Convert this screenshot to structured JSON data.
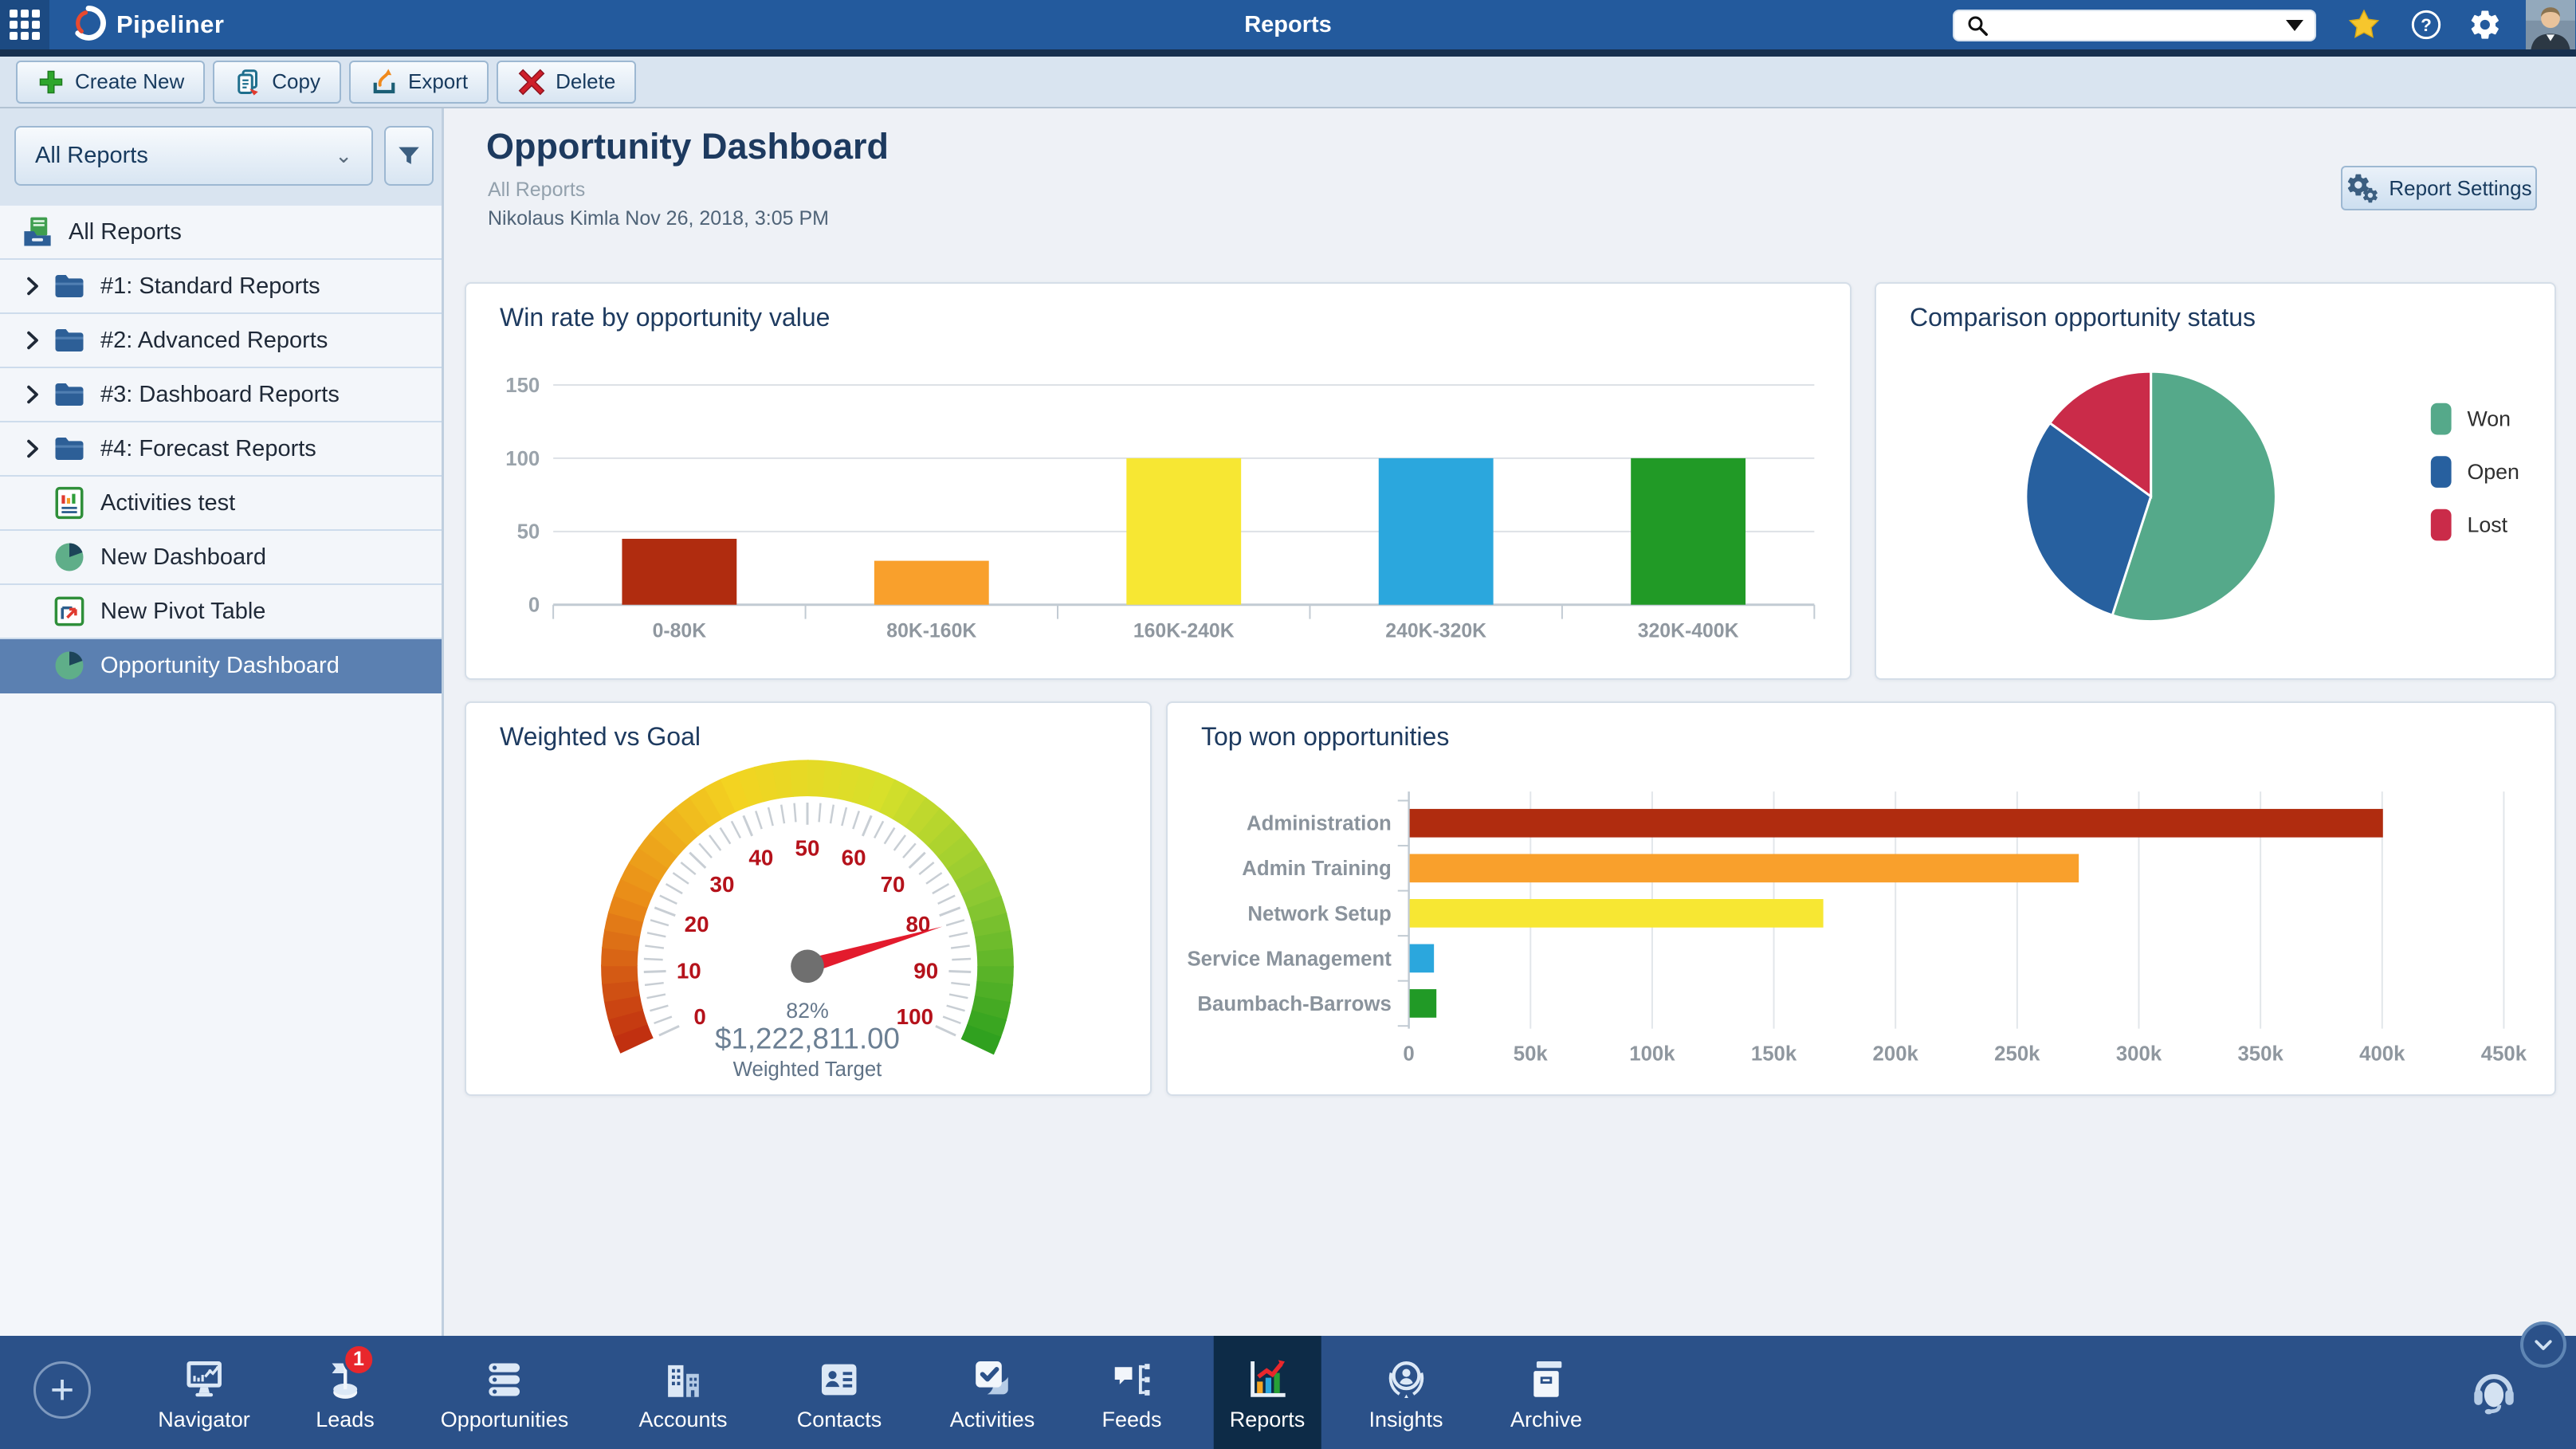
{
  "topbar": {
    "app_name": "Pipeliner",
    "page_title": "Reports",
    "search_placeholder": ""
  },
  "toolbar": {
    "buttons": [
      {
        "name": "create-new-button",
        "icon": "plus-icon",
        "label": "Create New"
      },
      {
        "name": "copy-button",
        "icon": "copy-icon",
        "label": "Copy"
      },
      {
        "name": "export-button",
        "icon": "export-icon",
        "label": "Export"
      },
      {
        "name": "delete-button",
        "icon": "delete-icon",
        "label": "Delete"
      }
    ]
  },
  "sidebar": {
    "filter_value": "All Reports",
    "items": [
      {
        "name": "sidebar-item-all-reports",
        "label": "All Reports",
        "icon": "reports-stack",
        "chevron": false,
        "indent": 0,
        "selected": false
      },
      {
        "name": "sidebar-item-standard-reports",
        "label": "#1: Standard Reports",
        "icon": "folder",
        "chevron": true,
        "indent": 1,
        "selected": false
      },
      {
        "name": "sidebar-item-advanced-reports",
        "label": "#2: Advanced Reports",
        "icon": "folder",
        "chevron": true,
        "indent": 1,
        "selected": false
      },
      {
        "name": "sidebar-item-dashboard-reports",
        "label": "#3: Dashboard Reports",
        "icon": "folder",
        "chevron": true,
        "indent": 1,
        "selected": false
      },
      {
        "name": "sidebar-item-forecast-reports",
        "label": "#4: Forecast Reports",
        "icon": "folder",
        "chevron": true,
        "indent": 1,
        "selected": false
      },
      {
        "name": "sidebar-item-activities-test",
        "label": "Activities test",
        "icon": "report-doc",
        "chevron": false,
        "indent": 1,
        "selected": false
      },
      {
        "name": "sidebar-item-new-dashboard",
        "label": "New Dashboard",
        "icon": "pie",
        "chevron": false,
        "indent": 1,
        "selected": false
      },
      {
        "name": "sidebar-item-new-pivot-table",
        "label": "New Pivot Table",
        "icon": "pivot",
        "chevron": false,
        "indent": 1,
        "selected": false
      },
      {
        "name": "sidebar-item-opportunity-dashboard",
        "label": "Opportunity Dashboard",
        "icon": "pie",
        "chevron": false,
        "indent": 1,
        "selected": true
      }
    ]
  },
  "main": {
    "title": "Opportunity Dashboard",
    "subtitle": "All Reports",
    "byline": "Nikolaus Kimla Nov 26, 2018, 3:05 PM",
    "report_settings_label": "Report Settings"
  },
  "chart_data": [
    {
      "type": "bar",
      "title": "Win rate by opportunity value",
      "categories": [
        "0-80K",
        "80K-160K",
        "160K-240K",
        "240K-320K",
        "320K-400K"
      ],
      "values": [
        45,
        30,
        100,
        100,
        100
      ],
      "colors": [
        "#b02c0f",
        "#f9a02c",
        "#f7e733",
        "#2ba7dd",
        "#219a26"
      ],
      "yticks": [
        0,
        50,
        100,
        150
      ],
      "ylim": [
        0,
        150
      ],
      "grid": true
    },
    {
      "type": "pie",
      "title": "Comparison opportunity status",
      "labels": [
        "Won",
        "Open",
        "Lost"
      ],
      "values": [
        55,
        30,
        15
      ],
      "colors": [
        "#55a98a",
        "#27609f",
        "#ca2b49"
      ],
      "legend_position": "right"
    },
    {
      "type": "gauge",
      "title": "Weighted vs Goal",
      "min": 0,
      "max": 100,
      "value": 82,
      "value_label": "82%",
      "amount": "$1,222,811.00",
      "caption": "Weighted Target",
      "major_tick": 10,
      "minor_tick": 2,
      "arc_colors": [
        "#bf2b10",
        "#ea8c18",
        "#f3d321",
        "#d8e02a",
        "#8ac832",
        "#2b9f1e"
      ],
      "needle_color": "#e31b2d"
    },
    {
      "type": "bar-horizontal",
      "title": "Top won opportunities",
      "categories": [
        "Administration",
        "Admin Training",
        "Network Setup",
        "Service Management",
        "Baumbach-Barrows"
      ],
      "values": [
        400000,
        275000,
        170000,
        10000,
        11000
      ],
      "colors": [
        "#b02c0f",
        "#f9a02c",
        "#f7e733",
        "#2ba7dd",
        "#219a26"
      ],
      "xtick_labels": [
        "0",
        "50k",
        "100k",
        "150k",
        "200k",
        "250k",
        "300k",
        "350k",
        "400k",
        "450k"
      ],
      "xtick_values": [
        0,
        50000,
        100000,
        150000,
        200000,
        250000,
        300000,
        350000,
        400000,
        450000
      ],
      "xlim": [
        0,
        450000
      ],
      "grid": true
    }
  ],
  "bottom_nav": {
    "items": [
      {
        "name": "nav-item-navigator",
        "icon": "navigator",
        "label": "Navigator"
      },
      {
        "name": "nav-item-leads",
        "icon": "leads",
        "label": "Leads",
        "badge": "1"
      },
      {
        "name": "nav-item-opportunities",
        "icon": "opportunities",
        "label": "Opportunities"
      },
      {
        "name": "nav-item-accounts",
        "icon": "accounts",
        "label": "Accounts"
      },
      {
        "name": "nav-item-contacts",
        "icon": "contacts",
        "label": "Contacts"
      },
      {
        "name": "nav-item-activities",
        "icon": "activities",
        "label": "Activities"
      },
      {
        "name": "nav-item-feeds",
        "icon": "feeds",
        "label": "Feeds"
      },
      {
        "name": "nav-item-reports",
        "icon": "reports",
        "label": "Reports",
        "active": true
      },
      {
        "name": "nav-item-insights",
        "icon": "insights",
        "label": "Insights"
      },
      {
        "name": "nav-item-archive",
        "icon": "archive",
        "label": "Archive"
      }
    ]
  },
  "colors": {
    "topbar": "#235a9d",
    "topbar_dark_strip": "#17304f",
    "toolbar_bg": "#d9e4f0",
    "sidebar_bg": "#f3f6fa",
    "sidebar_selected": "#5b80b1",
    "content_bg": "#eef1f6",
    "bottombar": "#2b5189",
    "active_tile": "#0d2b47",
    "badge_red": "#e8272c",
    "star_yellow": "#f6c62d"
  }
}
